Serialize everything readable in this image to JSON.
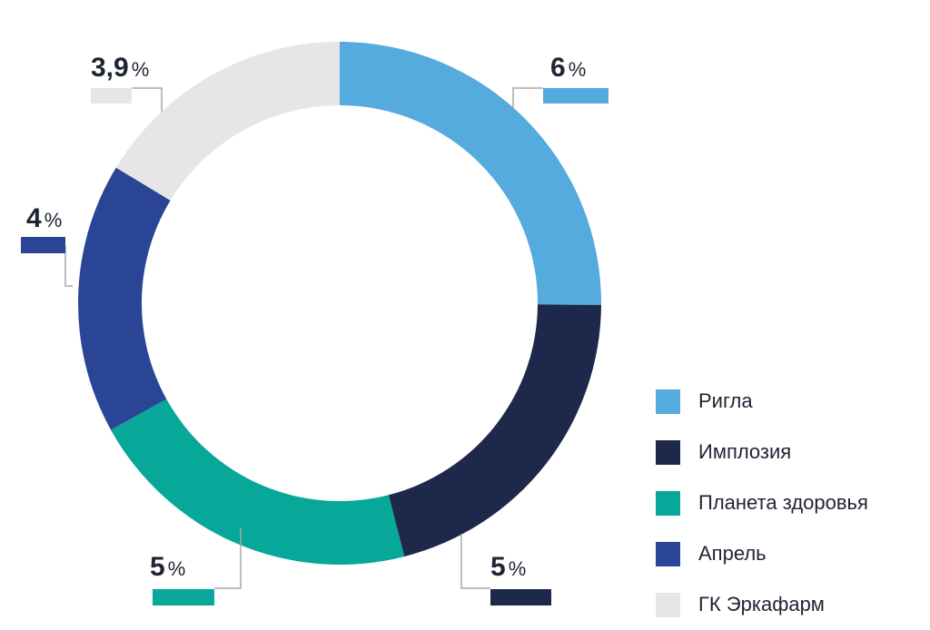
{
  "chart_data": {
    "type": "pie",
    "variant": "donut",
    "unit": "%",
    "series": [
      {
        "name": "Ригла",
        "value": 6,
        "label": "6",
        "color": "#55aade"
      },
      {
        "name": "Имплозия",
        "value": 5,
        "label": "5",
        "color": "#1e284a"
      },
      {
        "name": "Планета здоровья",
        "value": 5,
        "label": "5",
        "color": "#07a79a"
      },
      {
        "name": "Апрель",
        "value": 4,
        "label": "4",
        "color": "#2b4596"
      },
      {
        "name": "ГК Эркафарм",
        "value": 3.9,
        "label": "3,9",
        "color": "#e6e6e6"
      }
    ],
    "legend_position": "right-bottom"
  }
}
